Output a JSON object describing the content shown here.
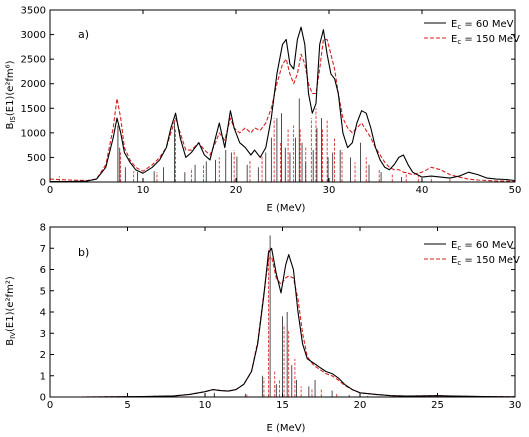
{
  "chart_data": [
    {
      "type": "line",
      "panel_label": "a)",
      "xlabel": "E (MeV)",
      "ylabel": "B",
      "ylabel_sub": "IS",
      "ylabel_rest": "(E1)(e²fm⁶)",
      "xlim": [
        0,
        50
      ],
      "ylim": [
        0,
        3500
      ],
      "xticks": [
        0,
        10,
        20,
        30,
        40,
        50
      ],
      "yticks": [
        0,
        500,
        1000,
        1500,
        2000,
        2500,
        3000,
        3500
      ],
      "legend_position": "top-right",
      "series": [
        {
          "name": "E",
          "name_sub": "c",
          "name_rest": " = 60 MeV",
          "style": "solid",
          "color": "#000000",
          "x": [
            0,
            2,
            4,
            5,
            6,
            6.8,
            7.2,
            7.6,
            8,
            8.6,
            9.2,
            10,
            11,
            11.8,
            12.5,
            13,
            13.5,
            14,
            14.6,
            15.2,
            16,
            16.6,
            17.2,
            17.8,
            18.2,
            18.8,
            19.4,
            19.8,
            20.4,
            21,
            21.6,
            22,
            22.6,
            23.2,
            23.8,
            24.4,
            25,
            25.4,
            25.8,
            26.2,
            26.6,
            27,
            27.4,
            27.8,
            28.2,
            28.6,
            29,
            29.4,
            29.8,
            30.2,
            30.6,
            31,
            31.5,
            32,
            32.5,
            33,
            33.5,
            34,
            34.5,
            35,
            35.5,
            36,
            36.5,
            37,
            37.5,
            38,
            38.5,
            39,
            40,
            41,
            42,
            43,
            44,
            45,
            46,
            47,
            48,
            49,
            50
          ],
          "y": [
            10,
            10,
            20,
            60,
            300,
            900,
            1300,
            1000,
            600,
            400,
            250,
            180,
            300,
            450,
            700,
            1100,
            1400,
            900,
            500,
            600,
            800,
            550,
            450,
            900,
            1200,
            700,
            1450,
            1100,
            800,
            700,
            550,
            650,
            500,
            700,
            1300,
            2200,
            2800,
            2900,
            2400,
            2300,
            2900,
            3150,
            2800,
            1800,
            1400,
            1600,
            2800,
            3100,
            2600,
            2200,
            2100,
            1800,
            1000,
            700,
            800,
            1200,
            1450,
            1400,
            1100,
            700,
            450,
            300,
            250,
            350,
            500,
            550,
            350,
            200,
            100,
            120,
            100,
            80,
            120,
            200,
            150,
            80,
            60,
            50,
            30
          ]
        },
        {
          "name": "E",
          "name_sub": "c",
          "name_rest": " = 150 MeV",
          "style": "dashed",
          "color": "#d62020",
          "x": [
            0,
            2,
            4,
            5,
            6,
            6.8,
            7.2,
            7.6,
            8,
            8.6,
            9.2,
            10,
            11,
            11.8,
            12.5,
            13,
            13.5,
            14,
            14.6,
            15.2,
            16,
            16.6,
            17.2,
            17.8,
            18.2,
            18.8,
            19.4,
            19.8,
            20.4,
            21,
            21.6,
            22,
            22.6,
            23.2,
            23.8,
            24.4,
            25,
            25.4,
            25.8,
            26.2,
            26.6,
            27,
            27.4,
            27.8,
            28.2,
            28.6,
            29,
            29.4,
            29.8,
            30.2,
            30.6,
            31,
            31.5,
            32,
            32.5,
            33,
            33.5,
            34,
            34.5,
            35,
            35.5,
            36,
            36.5,
            37,
            37.5,
            38,
            38.5,
            39,
            40,
            41,
            42,
            43,
            44,
            45,
            46,
            47,
            48,
            49,
            50
          ],
          "y": [
            60,
            40,
            30,
            60,
            350,
            1100,
            1700,
            1300,
            700,
            450,
            300,
            220,
            350,
            500,
            700,
            1000,
            1300,
            1000,
            650,
            650,
            800,
            650,
            550,
            800,
            1000,
            850,
            1300,
            1100,
            1000,
            1100,
            1000,
            1100,
            1050,
            1200,
            1500,
            2000,
            2400,
            2500,
            2200,
            2000,
            2200,
            2600,
            2400,
            2000,
            1800,
            1800,
            2300,
            2900,
            2900,
            2600,
            2300,
            1800,
            1300,
            1100,
            1000,
            1100,
            1200,
            1050,
            900,
            700,
            550,
            400,
            300,
            250,
            250,
            200,
            180,
            150,
            200,
            300,
            250,
            150,
            100,
            60,
            40,
            30,
            20,
            20,
            10
          ]
        }
      ],
      "strengths_black": [
        [
          7.3,
          1150
        ],
        [
          7.5,
          700
        ],
        [
          8.1,
          300
        ],
        [
          9.4,
          200
        ],
        [
          11.2,
          220
        ],
        [
          12.2,
          300
        ],
        [
          13.4,
          1200
        ],
        [
          14.5,
          200
        ],
        [
          15.6,
          350
        ],
        [
          16.8,
          420
        ],
        [
          17.8,
          450
        ],
        [
          18.9,
          650
        ],
        [
          19.5,
          600
        ],
        [
          20.1,
          520
        ],
        [
          21.2,
          350
        ],
        [
          22.4,
          300
        ],
        [
          23.2,
          600
        ],
        [
          23.8,
          900
        ],
        [
          24.4,
          1300
        ],
        [
          24.9,
          1400
        ],
        [
          25.3,
          700
        ],
        [
          25.8,
          600
        ],
        [
          26.4,
          900
        ],
        [
          26.8,
          1700
        ],
        [
          27.1,
          800
        ],
        [
          27.5,
          400
        ],
        [
          28.3,
          650
        ],
        [
          28.7,
          1100
        ],
        [
          29.2,
          1300
        ],
        [
          29.9,
          500
        ],
        [
          30.4,
          600
        ],
        [
          31.2,
          650
        ],
        [
          32.3,
          500
        ],
        [
          33.4,
          800
        ],
        [
          34.3,
          350
        ],
        [
          35.6,
          200
        ],
        [
          37.8,
          100
        ]
      ],
      "strengths_red": [
        [
          1.0,
          120
        ],
        [
          7.3,
          1100
        ],
        [
          7.6,
          600
        ],
        [
          9.0,
          220
        ],
        [
          11.5,
          200
        ],
        [
          13.5,
          1100
        ],
        [
          15.2,
          280
        ],
        [
          16.5,
          350
        ],
        [
          18.2,
          500
        ],
        [
          19.8,
          650
        ],
        [
          21.5,
          450
        ],
        [
          22.8,
          550
        ],
        [
          24.1,
          1300
        ],
        [
          24.8,
          800
        ],
        [
          25.6,
          1100
        ],
        [
          26.2,
          1150
        ],
        [
          26.9,
          1100
        ],
        [
          27.5,
          700
        ],
        [
          28.1,
          1300
        ],
        [
          28.6,
          1500
        ],
        [
          29.3,
          1100
        ],
        [
          29.8,
          1250
        ],
        [
          30.6,
          900
        ],
        [
          31.4,
          650
        ],
        [
          32.8,
          400
        ],
        [
          34.0,
          500
        ],
        [
          35.4,
          250
        ],
        [
          36.8,
          180
        ],
        [
          38.3,
          200
        ],
        [
          39.6,
          130
        ],
        [
          41.0,
          100
        ],
        [
          43.0,
          80
        ]
      ]
    },
    {
      "type": "line",
      "panel_label": "b)",
      "xlabel": "E (MeV)",
      "ylabel": "B",
      "ylabel_sub": "IV",
      "ylabel_rest": "(E1)(e²fm²)",
      "xlim": [
        0,
        30
      ],
      "ylim": [
        0,
        8
      ],
      "xticks": [
        0,
        5,
        10,
        15,
        20,
        25,
        30
      ],
      "yticks": [
        0,
        1,
        2,
        3,
        4,
        5,
        6,
        7,
        8
      ],
      "legend_position": "top-right",
      "series": [
        {
          "name": "E",
          "name_sub": "c",
          "name_rest": " = 60 MeV",
          "style": "solid",
          "color": "#000000",
          "x": [
            0,
            2,
            4,
            6,
            8,
            9,
            10,
            10.5,
            11,
            11.5,
            12,
            12.5,
            13,
            13.4,
            13.8,
            14.1,
            14.3,
            14.6,
            14.9,
            15.2,
            15.4,
            15.7,
            16.0,
            16.3,
            16.6,
            17.0,
            17.4,
            17.8,
            18.2,
            18.6,
            19.0,
            19.5,
            20.0,
            21,
            22,
            23,
            24,
            25,
            26,
            28,
            30
          ],
          "y": [
            0,
            0,
            0.01,
            0.02,
            0.05,
            0.12,
            0.25,
            0.35,
            0.3,
            0.28,
            0.35,
            0.6,
            1.2,
            2.5,
            4.8,
            6.8,
            7.0,
            5.8,
            4.9,
            6.2,
            6.7,
            6.0,
            4.0,
            2.5,
            1.8,
            1.6,
            1.4,
            1.2,
            1.1,
            0.9,
            0.6,
            0.35,
            0.2,
            0.12,
            0.06,
            0.04,
            0.05,
            0.06,
            0.04,
            0.02,
            0.01
          ]
        },
        {
          "name": "E",
          "name_sub": "c",
          "name_rest": " = 150 MeV",
          "style": "dashed",
          "color": "#d62020",
          "x": [
            0,
            2,
            4,
            6,
            8,
            9,
            10,
            10.5,
            11,
            11.5,
            12,
            12.5,
            13,
            13.4,
            13.8,
            14.1,
            14.3,
            14.6,
            14.9,
            15.2,
            15.4,
            15.7,
            16.0,
            16.3,
            16.6,
            17.0,
            17.4,
            17.8,
            18.2,
            18.6,
            19.0,
            19.5,
            20.0,
            21,
            22,
            23,
            24,
            25,
            26,
            28,
            30
          ],
          "y": [
            0,
            0,
            0.01,
            0.02,
            0.05,
            0.12,
            0.25,
            0.35,
            0.3,
            0.28,
            0.35,
            0.6,
            1.2,
            2.6,
            4.9,
            6.5,
            6.6,
            5.6,
            5.3,
            5.6,
            5.7,
            5.6,
            4.6,
            3.0,
            1.9,
            1.5,
            1.3,
            1.1,
            1.0,
            0.8,
            0.55,
            0.35,
            0.2,
            0.12,
            0.06,
            0.04,
            0.05,
            0.06,
            0.04,
            0.02,
            0.01
          ]
        }
      ],
      "strengths_black": [
        [
          10.6,
          0.2
        ],
        [
          12.6,
          0.15
        ],
        [
          13.7,
          1.0
        ],
        [
          14.2,
          7.6
        ],
        [
          14.6,
          0.6
        ],
        [
          15.0,
          3.8
        ],
        [
          15.3,
          4.0
        ],
        [
          15.6,
          1.5
        ],
        [
          15.9,
          0.8
        ],
        [
          16.7,
          0.5
        ],
        [
          17.1,
          0.8
        ],
        [
          18.2,
          0.3
        ],
        [
          19.3,
          0.1
        ],
        [
          20.5,
          0.05
        ],
        [
          24.0,
          0.04
        ]
      ],
      "strengths_red": [
        [
          10.6,
          0.18
        ],
        [
          12.7,
          0.12
        ],
        [
          13.8,
          0.9
        ],
        [
          14.1,
          7.0
        ],
        [
          14.5,
          1.2
        ],
        [
          14.8,
          0.8
        ],
        [
          15.1,
          3.4
        ],
        [
          15.4,
          3.1
        ],
        [
          15.8,
          1.8
        ],
        [
          16.2,
          0.5
        ],
        [
          16.9,
          0.4
        ],
        [
          17.5,
          0.35
        ],
        [
          18.5,
          0.2
        ]
      ]
    }
  ]
}
